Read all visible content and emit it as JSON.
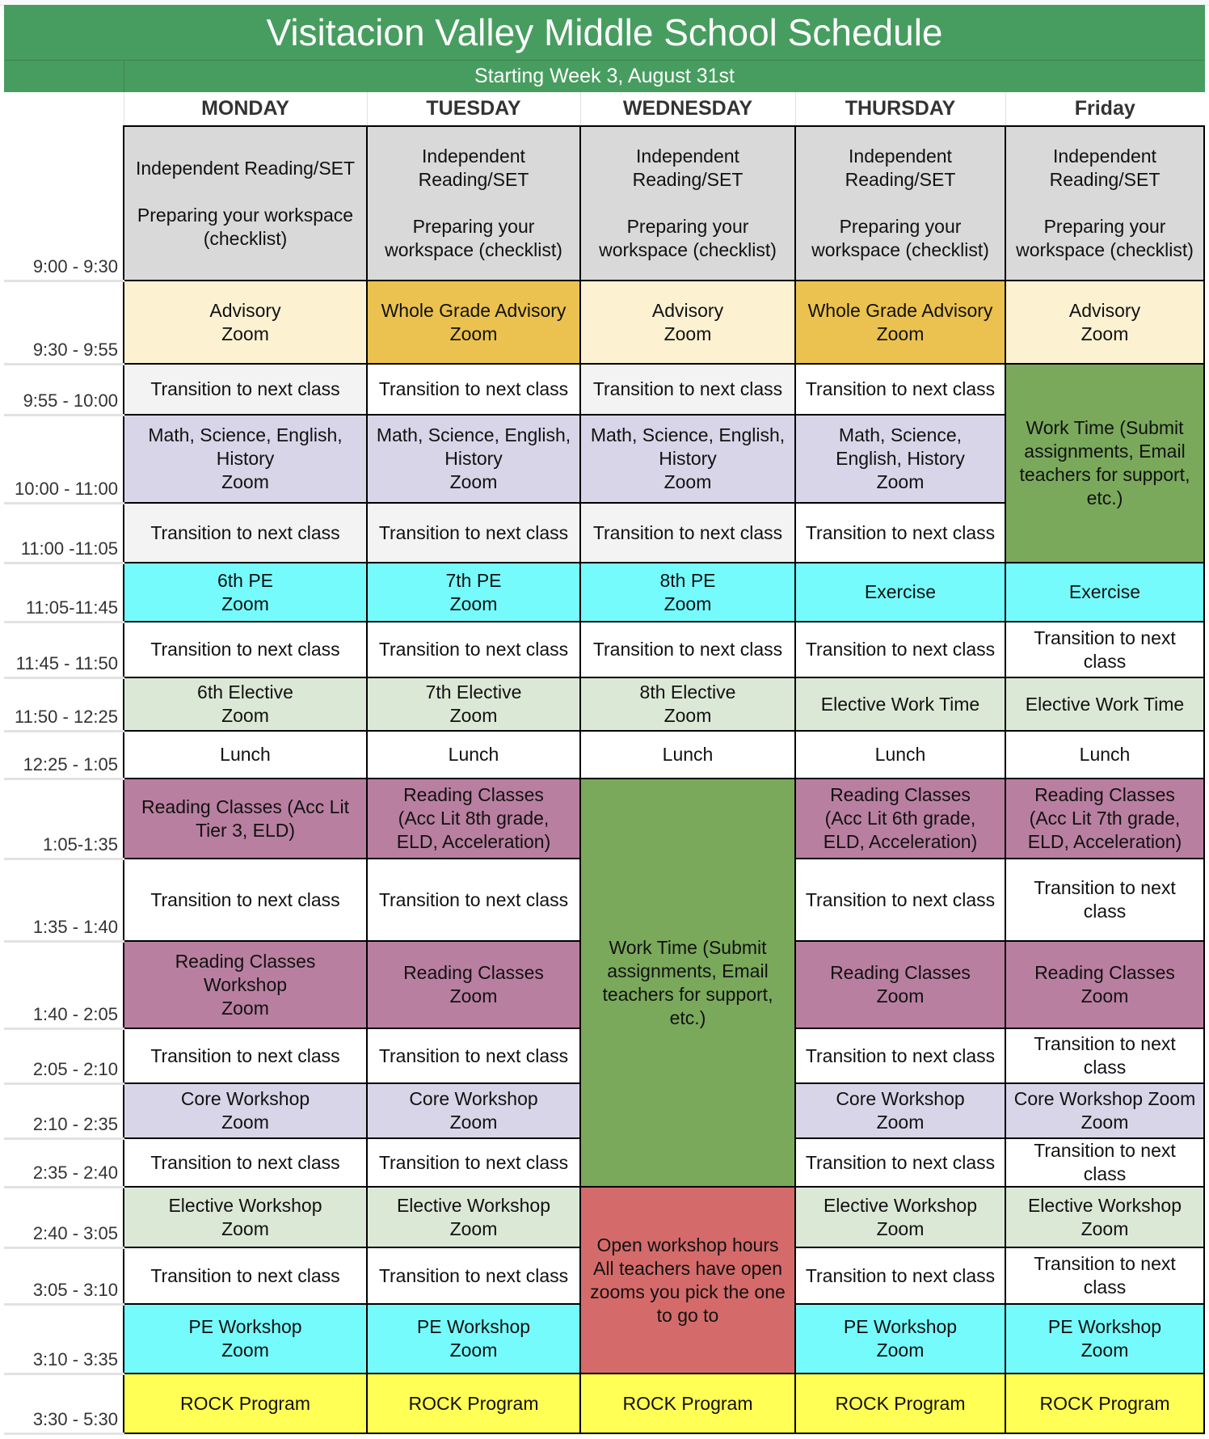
{
  "title": "Visitacion Valley Middle School Schedule",
  "subtitle": "Starting Week 3, August 31st",
  "days": [
    "MONDAY",
    "TUESDAY",
    "WEDNESDAY",
    "THURSDAY",
    "Friday"
  ],
  "colors": {
    "header": "#479d5f",
    "gray": "#d9d9d9",
    "cream": "#fcf1d1",
    "gold": "#ebc24f",
    "light": "#f3f3f3",
    "white": "#ffffff",
    "lavender": "#d9d5e8",
    "green": "#7aa95c",
    "cyan": "#76fbfc",
    "lightgreen": "#dce8d6",
    "mauve": "#b97fa0",
    "red": "#d46b6a",
    "yellow": "#ffff55"
  },
  "rows": [
    {
      "time": "9:00 - 9:30",
      "cells": [
        {
          "text": "Independent Reading/SET\n\nPreparing your workspace\n(checklist)",
          "color": "gray"
        },
        {
          "text": "Independent\nReading/SET\n\nPreparing your\nworkspace (checklist)",
          "color": "gray"
        },
        {
          "text": "Independent\nReading/SET\n\nPreparing your\nworkspace (checklist)",
          "color": "gray"
        },
        {
          "text": "Independent\nReading/SET\n\nPreparing your\nworkspace (checklist)",
          "color": "gray"
        },
        {
          "text": "Independent\nReading/SET\n\nPreparing your\nworkspace (checklist)",
          "color": "gray"
        }
      ]
    },
    {
      "time": "9:30 - 9:55",
      "cells": [
        {
          "text": "Advisory\nZoom",
          "color": "cream"
        },
        {
          "text": "Whole Grade Advisory\nZoom",
          "color": "gold"
        },
        {
          "text": "Advisory\nZoom",
          "color": "cream"
        },
        {
          "text": "Whole Grade Advisory\nZoom",
          "color": "gold"
        },
        {
          "text": "Advisory\nZoom",
          "color": "cream"
        }
      ]
    },
    {
      "time": "9:55 - 10:00",
      "cells": [
        {
          "text": "Transition to next class",
          "color": "light"
        },
        {
          "text": "Transition to next class",
          "color": "white"
        },
        {
          "text": "Transition to next class",
          "color": "light"
        },
        {
          "text": "Transition to next class",
          "color": "white"
        },
        {
          "text": "Work Time (Submit\nassignments, Email\nteachers for support,\netc.)",
          "color": "green",
          "rowspan": 3
        }
      ]
    },
    {
      "time": "10:00 - 11:00",
      "cells": [
        {
          "text": "Math, Science, English,\nHistory\nZoom",
          "color": "lavender"
        },
        {
          "text": "Math, Science, English,\nHistory\nZoom",
          "color": "lavender"
        },
        {
          "text": "Math, Science, English,\nHistory\nZoom",
          "color": "lavender"
        },
        {
          "text": "Math, Science,\nEnglish, History\nZoom",
          "color": "lavender"
        }
      ]
    },
    {
      "time": "11:00 -11:05",
      "cells": [
        {
          "text": "Transition to next class",
          "color": "light"
        },
        {
          "text": "Transition to next class",
          "color": "light"
        },
        {
          "text": "Transition to next class",
          "color": "light"
        },
        {
          "text": "Transition to next class",
          "color": "white"
        }
      ]
    },
    {
      "time": "11:05-11:45",
      "cells": [
        {
          "text": "6th PE\nZoom",
          "color": "cyan"
        },
        {
          "text": "7th PE\nZoom",
          "color": "cyan"
        },
        {
          "text": "8th PE\nZoom",
          "color": "cyan"
        },
        {
          "text": "Exercise",
          "color": "cyan"
        },
        {
          "text": "Exercise",
          "color": "cyan"
        }
      ]
    },
    {
      "time": "11:45 - 11:50",
      "cells": [
        {
          "text": "Transition to next class",
          "color": "white"
        },
        {
          "text": "Transition to next class",
          "color": "white"
        },
        {
          "text": "Transition to next class",
          "color": "white"
        },
        {
          "text": "Transition to next class",
          "color": "white"
        },
        {
          "text": "Transition to next\nclass",
          "color": "white"
        }
      ]
    },
    {
      "time": "11:50 - 12:25",
      "cells": [
        {
          "text": "6th Elective\nZoom",
          "color": "lightgreen"
        },
        {
          "text": "7th Elective\nZoom",
          "color": "lightgreen"
        },
        {
          "text": "8th Elective\nZoom",
          "color": "lightgreen"
        },
        {
          "text": "Elective Work Time",
          "color": "lightgreen"
        },
        {
          "text": "Elective Work Time",
          "color": "lightgreen"
        }
      ]
    },
    {
      "time": "12:25 - 1:05",
      "cells": [
        {
          "text": "Lunch",
          "color": "white"
        },
        {
          "text": "Lunch",
          "color": "white"
        },
        {
          "text": "Lunch",
          "color": "white"
        },
        {
          "text": "Lunch",
          "color": "white"
        },
        {
          "text": "Lunch",
          "color": "white"
        }
      ]
    },
    {
      "time": "1:05-1:35",
      "cells": [
        {
          "text": "Reading Classes (Acc Lit\nTier 3, ELD)",
          "color": "mauve"
        },
        {
          "text": "Reading Classes\n(Acc Lit 8th grade,\nELD, Acceleration)",
          "color": "mauve"
        },
        {
          "text": "Work Time (Submit\nassignments, Email\nteachers for support,\netc.)",
          "color": "green",
          "rowspan": 6
        },
        {
          "text": "Reading Classes\n(Acc Lit 6th grade,\nELD, Acceleration)",
          "color": "mauve"
        },
        {
          "text": "Reading Classes\n(Acc Lit 7th grade,\nELD, Acceleration)",
          "color": "mauve"
        }
      ]
    },
    {
      "time": "1:35 - 1:40",
      "cells": [
        {
          "text": "Transition to next class",
          "color": "white"
        },
        {
          "text": "Transition to next class",
          "color": "white"
        },
        {
          "text": "Transition to next class",
          "color": "white"
        },
        {
          "text": "Transition to next\nclass",
          "color": "white"
        }
      ]
    },
    {
      "time": "1:40 - 2:05",
      "cells": [
        {
          "text": "Reading Classes\nWorkshop\nZoom",
          "color": "mauve"
        },
        {
          "text": "Reading Classes\nZoom",
          "color": "mauve"
        },
        {
          "text": "Reading Classes\nZoom",
          "color": "mauve"
        },
        {
          "text": "Reading Classes\nZoom",
          "color": "mauve"
        }
      ]
    },
    {
      "time": "2:05 - 2:10",
      "cells": [
        {
          "text": "Transition to next class",
          "color": "white"
        },
        {
          "text": "Transition to next class",
          "color": "white"
        },
        {
          "text": "Transition to next class",
          "color": "white"
        },
        {
          "text": "Transition to next\nclass",
          "color": "white"
        }
      ]
    },
    {
      "time": "2:10 - 2:35",
      "cells": [
        {
          "text": "Core Workshop\nZoom",
          "color": "lavender"
        },
        {
          "text": "Core Workshop\nZoom",
          "color": "lavender"
        },
        {
          "text": "Core Workshop\nZoom",
          "color": "lavender"
        },
        {
          "text": "Core Workshop Zoom\nZoom",
          "color": "lavender"
        }
      ]
    },
    {
      "time": "2:35 - 2:40",
      "cells": [
        {
          "text": "Transition to next class",
          "color": "white"
        },
        {
          "text": "Transition to next class",
          "color": "white"
        },
        {
          "text": "Transition to next class",
          "color": "white"
        },
        {
          "text": "Transition to next\nclass",
          "color": "white"
        }
      ]
    },
    {
      "time": "2:40 - 3:05",
      "cells": [
        {
          "text": "Elective Workshop\nZoom",
          "color": "lightgreen"
        },
        {
          "text": "Elective Workshop\nZoom",
          "color": "lightgreen"
        },
        {
          "text": "Open workshop hours\nAll teachers have open\nzooms you pick the one\nto go to",
          "color": "red",
          "rowspan": 3
        },
        {
          "text": "Elective Workshop\nZoom",
          "color": "lightgreen"
        },
        {
          "text": "Elective Workshop\nZoom",
          "color": "lightgreen"
        }
      ]
    },
    {
      "time": "3:05 - 3:10",
      "cells": [
        {
          "text": "Transition to next class",
          "color": "white"
        },
        {
          "text": "Transition to next class",
          "color": "white"
        },
        {
          "text": "Transition to next class",
          "color": "white"
        },
        {
          "text": "Transition to next\nclass",
          "color": "white"
        }
      ]
    },
    {
      "time": "3:10 - 3:35",
      "cells": [
        {
          "text": "PE Workshop\nZoom",
          "color": "cyan"
        },
        {
          "text": "PE Workshop\nZoom",
          "color": "cyan"
        },
        {
          "text": "PE Workshop\nZoom",
          "color": "cyan"
        },
        {
          "text": "PE Workshop\nZoom",
          "color": "cyan"
        }
      ]
    },
    {
      "time": "3:30 - 5:30",
      "cells": [
        {
          "text": "ROCK Program",
          "color": "yellow"
        },
        {
          "text": "ROCK Program",
          "color": "yellow"
        },
        {
          "text": "ROCK Program",
          "color": "yellow"
        },
        {
          "text": "ROCK Program",
          "color": "yellow"
        },
        {
          "text": "ROCK Program",
          "color": "yellow"
        }
      ]
    }
  ]
}
